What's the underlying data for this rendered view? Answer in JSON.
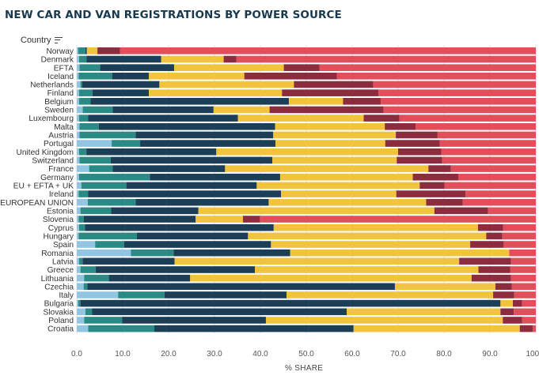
{
  "title": "NEW CAR AND VAN REGISTRATIONS BY POWER SOURCE",
  "sort": {
    "label": "Country"
  },
  "colors": {
    "battery_electric": "#91c5e2",
    "plug_in_hybrid": "#2a8a85",
    "hybrid": "#1c3f57",
    "petrol": "#f2c33c",
    "diesel": "#8c2c3e",
    "other": "#e34e5b"
  },
  "chart_data": {
    "type": "bar",
    "orientation": "horizontal",
    "stacked": true,
    "title": "NEW CAR AND VAN REGISTRATIONS BY POWER SOURCE",
    "xlabel": "% SHARE",
    "ylabel": "Country",
    "xlim": [
      0,
      100
    ],
    "xticks": [
      "0.0",
      "10.0",
      "20.0",
      "30.0",
      "40.0",
      "50.0",
      "60.0",
      "70.0",
      "80.0",
      "90.0",
      "100.0"
    ],
    "grid": true,
    "categories": [
      "Norway",
      "Denmark",
      "EFTA",
      "Iceland",
      "Netherlands",
      "Finland",
      "Belgium",
      "Sweden",
      "Luxembourg",
      "Malta",
      "Austria",
      "Portugal",
      "United Kingdom",
      "Switzerland",
      "France",
      "Germany",
      "EU + EFTA + UK",
      "Ireland",
      "EUROPEAN UNION",
      "Estonia",
      "Slovenia",
      "Cyprus",
      "Hungary",
      "Spain",
      "Romania",
      "Latvia",
      "Greece",
      "Lithuania",
      "Czechia",
      "Italy",
      "Bulgaria",
      "Slovakia",
      "Poland",
      "Croatia"
    ],
    "series": [
      {
        "values": [
          0.3,
          0.5,
          0.6,
          0.4,
          0.8,
          0.5,
          0.5,
          1.3,
          0.5,
          0.6,
          0.6,
          7.6,
          0.5,
          0.6,
          2.7,
          0.5,
          1.0,
          0.4,
          2.4,
          0.8,
          0.4,
          0.5,
          0.4,
          4.0,
          11.8,
          0.5,
          0.8,
          1.6,
          1.5,
          9.0,
          0.3,
          1.9,
          1.6,
          2.5
        ]
      },
      {
        "values": [
          1.6,
          1.6,
          4.5,
          7.3,
          0.4,
          2.9,
          2.5,
          6.5,
          2.0,
          4.2,
          12.2,
          6.2,
          1.6,
          6.8,
          5.1,
          15.4,
          9.8,
          2.1,
          10.4,
          6.7,
          1.1,
          1.3,
          12.7,
          6.3,
          9.3,
          0.8,
          3.3,
          5.4,
          0.8,
          10.1,
          0.5,
          1.4,
          8.3,
          14.4
        ]
      },
      {
        "values": [
          0.3,
          16.3,
          16.1,
          8.0,
          16.8,
          12.3,
          43.2,
          22.0,
          32.6,
          38.4,
          30.0,
          29.5,
          28.3,
          35.2,
          24.5,
          28.4,
          28.4,
          42.0,
          29.0,
          19.0,
          24.4,
          41.1,
          24.2,
          32.0,
          25.4,
          20.0,
          34.7,
          17.7,
          67.0,
          26.6,
          91.5,
          55.5,
          31.3,
          43.4
        ]
      },
      {
        "values": [
          2.3,
          13.6,
          23.9,
          20.8,
          29.3,
          29.0,
          11.8,
          12.2,
          27.4,
          23.9,
          26.7,
          23.9,
          39.6,
          27.1,
          44.3,
          28.9,
          35.5,
          25.1,
          34.3,
          51.4,
          10.3,
          44.5,
          51.9,
          43.4,
          47.7,
          62.0,
          48.7,
          61.3,
          21.9,
          45.0,
          2.7,
          33.5,
          51.6,
          36.2
        ]
      },
      {
        "values": [
          4.9,
          2.8,
          7.8,
          20.2,
          17.3,
          21.0,
          8.2,
          24.8,
          7.8,
          6.7,
          9.1,
          11.9,
          9.4,
          9.9,
          4.9,
          9.9,
          5.4,
          15.1,
          8.0,
          11.7,
          3.7,
          5.5,
          3.5,
          7.3,
          0.0,
          11.3,
          6.9,
          8.6,
          3.6,
          4.6,
          2.0,
          2.9,
          4.2,
          2.8
        ]
      },
      {
        "values": [
          90.6,
          65.2,
          47.1,
          43.3,
          35.4,
          34.3,
          33.8,
          33.2,
          29.7,
          26.2,
          21.4,
          20.9,
          20.6,
          20.4,
          18.5,
          16.9,
          19.9,
          15.3,
          15.9,
          10.4,
          60.1,
          7.1,
          7.3,
          7.0,
          5.8,
          5.4,
          5.6,
          5.4,
          5.2,
          4.7,
          3.0,
          4.8,
          3.0,
          0.7
        ]
      }
    ]
  }
}
